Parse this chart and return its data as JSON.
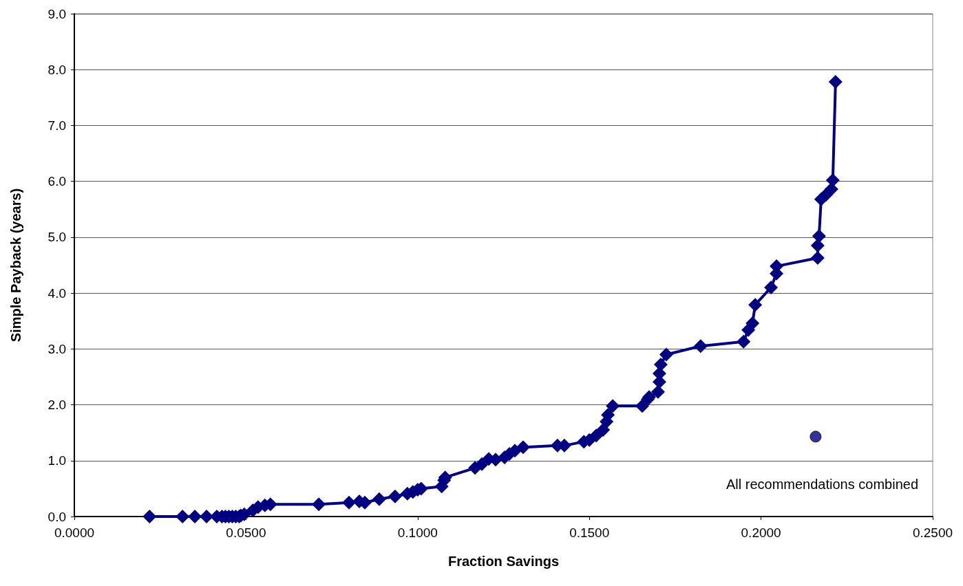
{
  "chart_data": {
    "type": "line",
    "xlabel": "Fraction Savings",
    "ylabel": "Simple Payback (years)",
    "xlim": [
      0,
      0.25
    ],
    "xticks": [
      {
        "value": 0,
        "label": "0.0000"
      },
      {
        "value": 0.05,
        "label": "0.0500"
      },
      {
        "value": 0.1,
        "label": "0.1000"
      },
      {
        "value": 0.15,
        "label": "0.1500"
      },
      {
        "value": 0.2,
        "label": "0.2000"
      },
      {
        "value": 0.25,
        "label": "0.2500"
      }
    ],
    "ylim": [
      0,
      9
    ],
    "yticks": [
      {
        "value": 0,
        "label": "0.0"
      },
      {
        "value": 1,
        "label": "1.0"
      },
      {
        "value": 2,
        "label": "2.0"
      },
      {
        "value": 3,
        "label": "3.0"
      },
      {
        "value": 4,
        "label": "4.0"
      },
      {
        "value": 5,
        "label": "5.0"
      },
      {
        "value": 6,
        "label": "6.0"
      },
      {
        "value": 7,
        "label": "7.0"
      },
      {
        "value": 8,
        "label": "8.0"
      },
      {
        "value": 9,
        "label": "9.0"
      }
    ],
    "grid": "y",
    "series": [
      {
        "color": "#000080",
        "marker": "diamond",
        "line_style": "solid",
        "x": [
          0.0219,
          0.0315,
          0.0351,
          0.0385,
          0.0415,
          0.043,
          0.044,
          0.045,
          0.046,
          0.047,
          0.048,
          0.0485,
          0.0495,
          0.052,
          0.0535,
          0.0555,
          0.0571,
          0.0712,
          0.08,
          0.083,
          0.0846,
          0.0888,
          0.0934,
          0.097,
          0.0986,
          0.1,
          0.101,
          0.107,
          0.1077,
          0.108,
          0.1167,
          0.1187,
          0.1207,
          0.1227,
          0.1253,
          0.1267,
          0.1283,
          0.1307,
          0.1407,
          0.1427,
          0.1484,
          0.15,
          0.152,
          0.154,
          0.155,
          0.1554,
          0.1568,
          0.1654,
          0.167,
          0.1674,
          0.17,
          0.1704,
          0.1704,
          0.1708,
          0.1724,
          0.1824,
          0.1949,
          0.1963,
          0.1975,
          0.1983,
          0.2029,
          0.2045,
          0.2045,
          0.2165,
          0.2165,
          0.2169,
          0.2175,
          0.2189,
          0.2205,
          0.2209,
          0.2217
        ],
        "values": [
          0,
          0,
          0,
          0,
          0,
          0,
          0,
          0,
          0,
          0,
          0,
          0.02,
          0.04,
          0.11,
          0.17,
          0.2,
          0.22,
          0.22,
          0.25,
          0.27,
          0.25,
          0.31,
          0.36,
          0.41,
          0.44,
          0.48,
          0.5,
          0.54,
          0.65,
          0.7,
          0.87,
          0.94,
          1.03,
          1.02,
          1.06,
          1.12,
          1.18,
          1.24,
          1.27,
          1.27,
          1.34,
          1.37,
          1.45,
          1.55,
          1.7,
          1.82,
          1.98,
          1.98,
          2.1,
          2.14,
          2.23,
          2.41,
          2.56,
          2.72,
          2.9,
          3.05,
          3.13,
          3.34,
          3.46,
          3.79,
          4.1,
          4.35,
          4.48,
          4.63,
          4.85,
          5.02,
          5.68,
          5.76,
          5.86,
          6.02,
          7.78
        ]
      },
      {
        "type": "scatter",
        "color": "#000080",
        "marker": "circle",
        "x": [
          0.2159
        ],
        "values": [
          1.43
        ]
      }
    ],
    "annotations": [
      "All recommendations combined"
    ]
  }
}
